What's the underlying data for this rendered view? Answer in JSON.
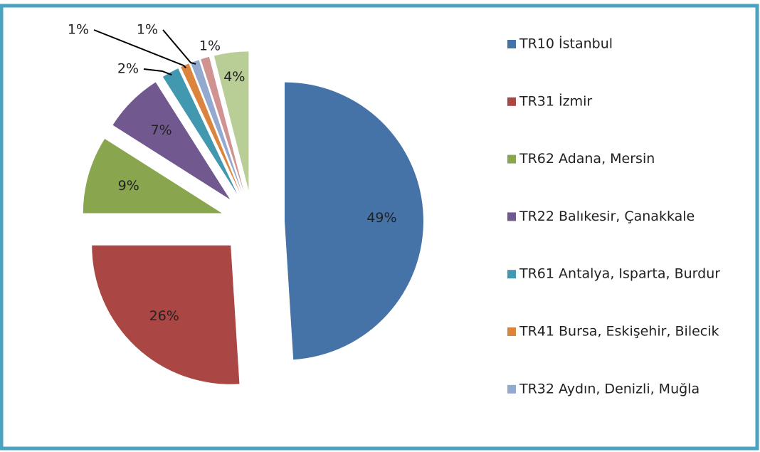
{
  "chart_data": {
    "type": "pie",
    "categories": [
      "TR10 İstanbul",
      "TR31 İzmir",
      "TR62 Adana, Mersin",
      "TR22 Balıkesir, Çanakkale",
      "TR61 Antalya, Isparta, Burdur",
      "TR41 Bursa, Eskişehir, Bilecik",
      "TR32 Aydın, Denizli, Muğla",
      null,
      null
    ],
    "values": [
      49,
      26,
      9,
      7,
      2,
      1,
      1,
      1,
      4
    ],
    "value_labels": [
      "49%",
      "26%",
      "9%",
      "7%",
      "2%",
      "1%",
      "1%",
      "1%",
      "4%"
    ],
    "colors": [
      "#4572a7",
      "#aa4643",
      "#89a54e",
      "#71588f",
      "#4198af",
      "#db843d",
      "#93a9cf",
      "#d19392",
      "#b9cd96"
    ],
    "legend": "right"
  }
}
